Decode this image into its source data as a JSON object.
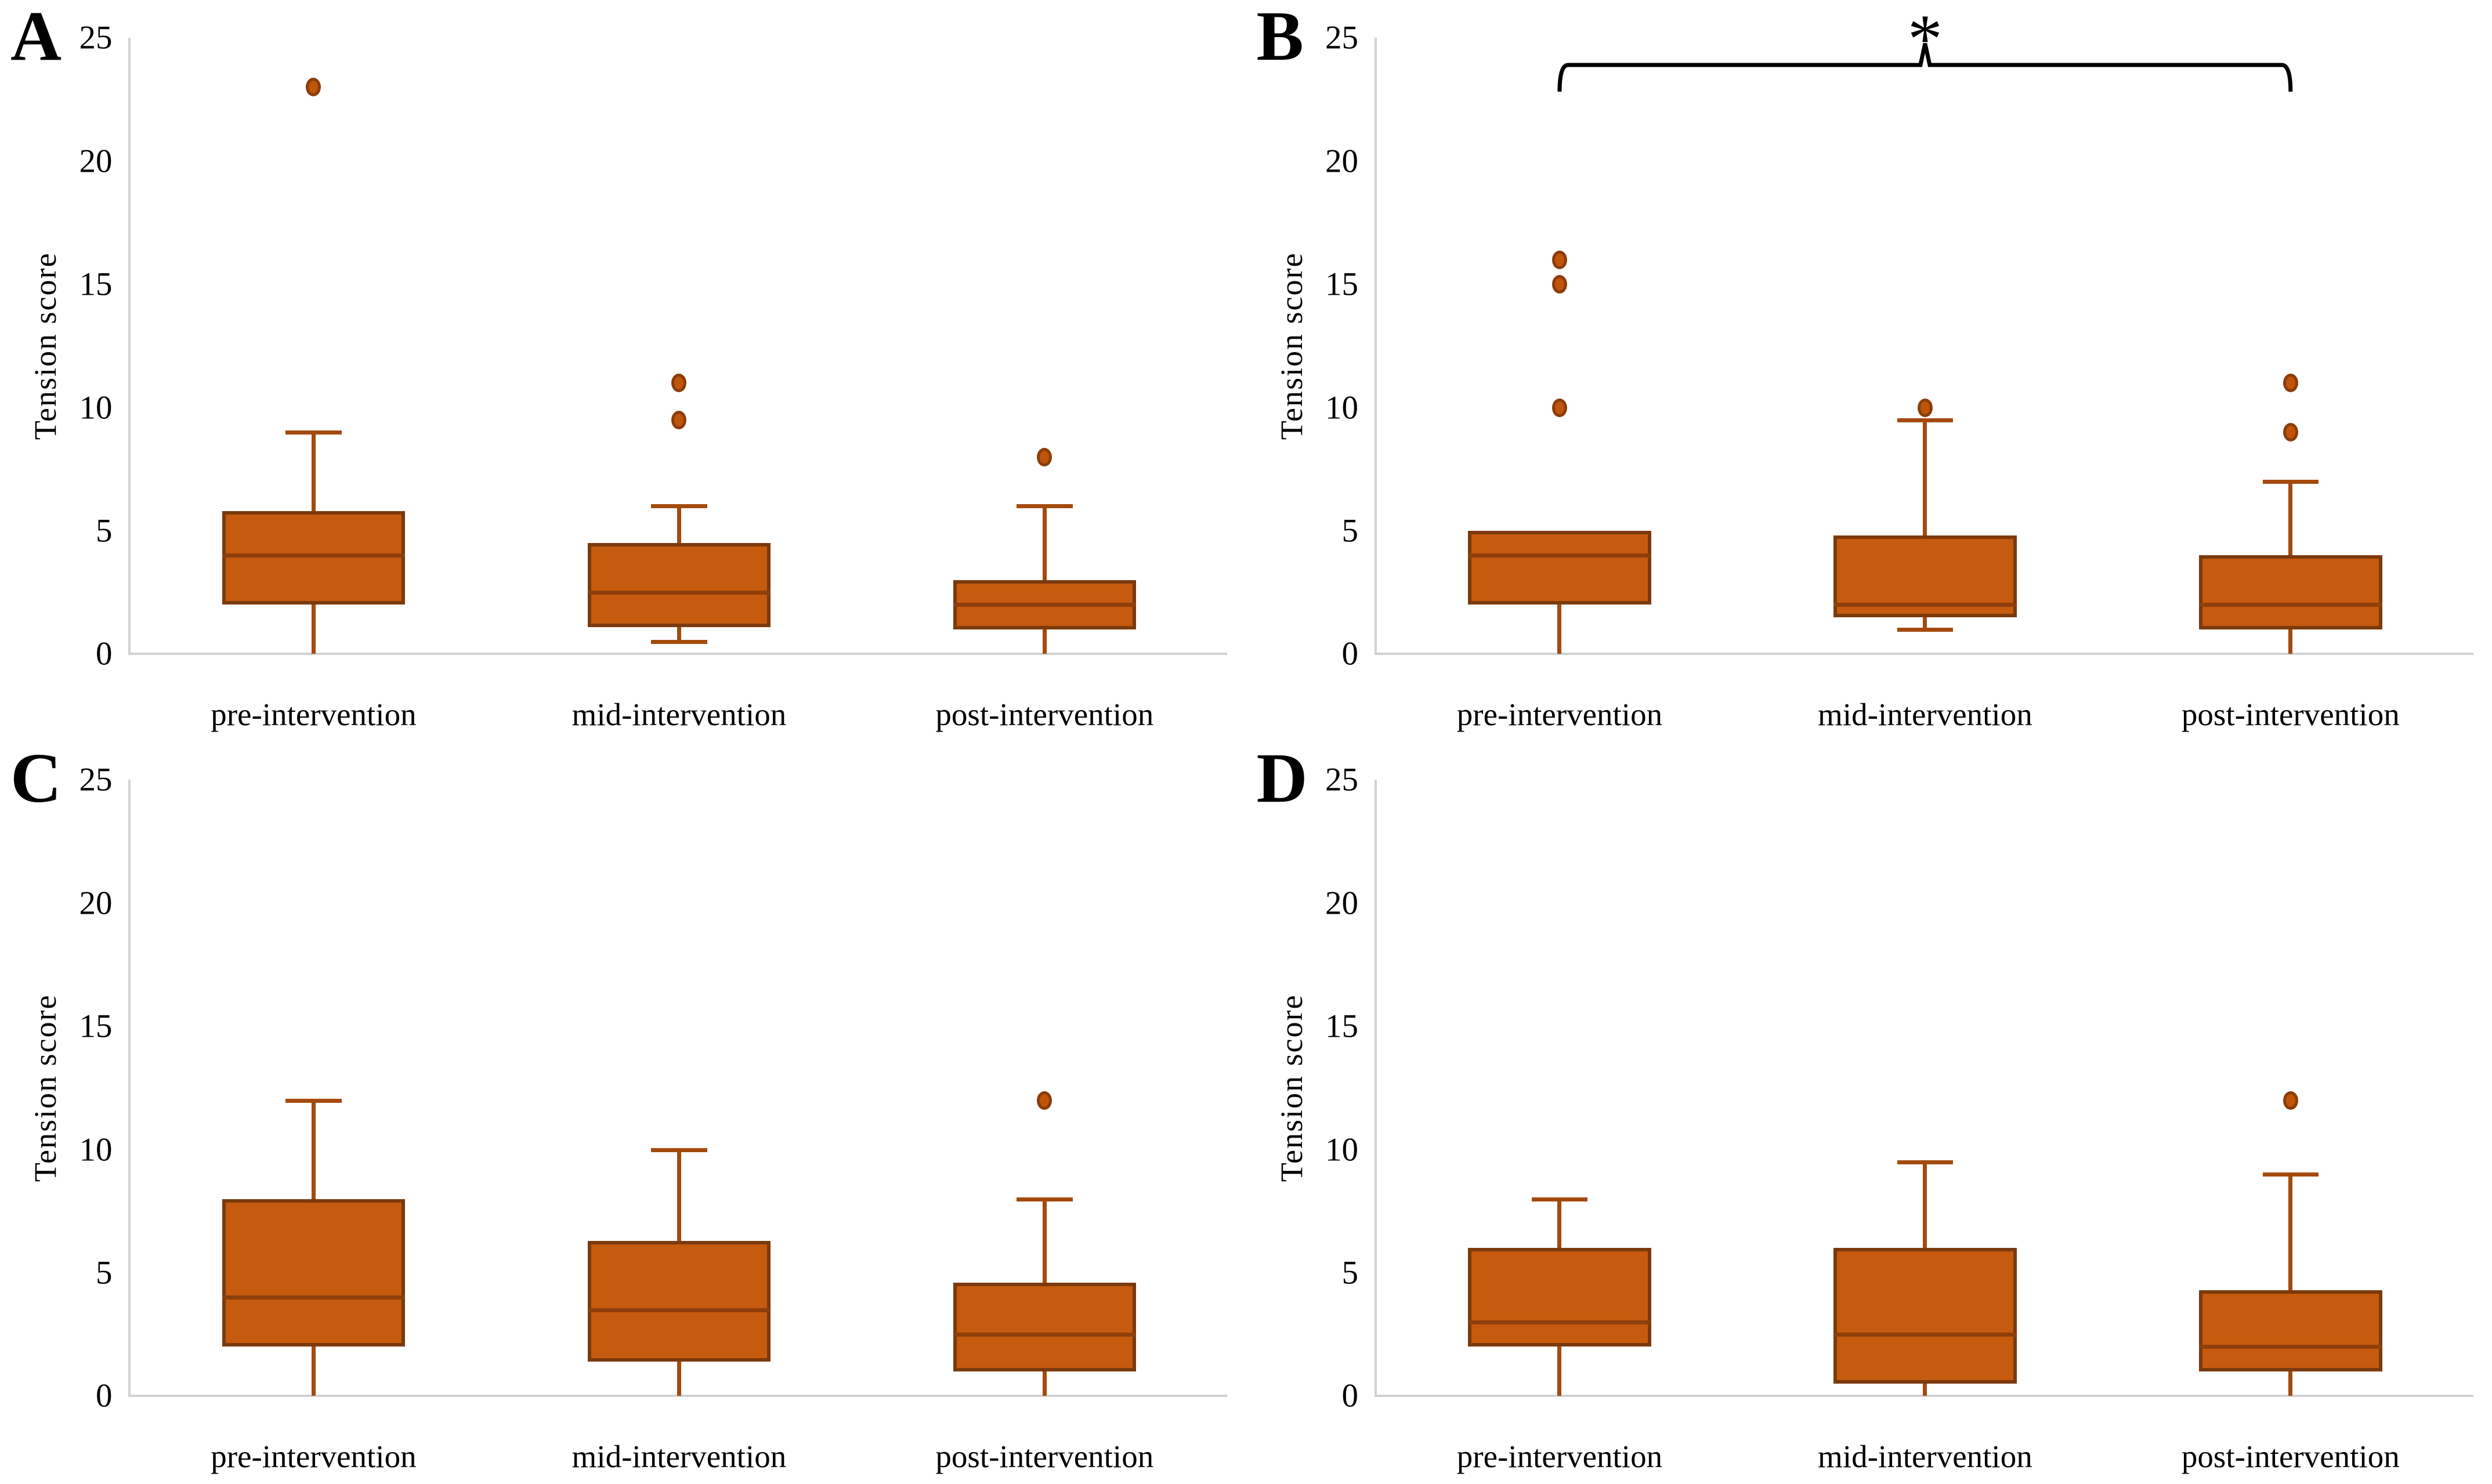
{
  "styles": {
    "box_fill": "#C65A0E",
    "box_border": "#7B3A0D",
    "whisker_color": "#A44A0E",
    "median_color": "#8D3F0C",
    "outlier_fill": "#C05409",
    "outlier_border": "#8A3D0A",
    "axis_color": "#D2D2D2",
    "text_color": "#000000",
    "bracket_color": "#000000"
  },
  "chart_data": [
    {
      "type": "box",
      "panel_label": "A",
      "ylabel": "Tension score",
      "ylim": [
        0,
        25
      ],
      "yticks": [
        0,
        5,
        10,
        15,
        20,
        25
      ],
      "grid": false,
      "legend": false,
      "categories": [
        "pre-intervention",
        "mid-intervention",
        "post-intervention"
      ],
      "boxes": [
        {
          "category": "pre-intervention",
          "min": 0,
          "q1": 2,
          "median": 4,
          "q3": 5.8,
          "max": 9,
          "outliers": [
            23
          ]
        },
        {
          "category": "mid-intervention",
          "min": 0.5,
          "q1": 1.1,
          "median": 2.5,
          "q3": 4.5,
          "max": 6,
          "outliers": [
            9.5,
            11
          ]
        },
        {
          "category": "post-intervention",
          "min": 0,
          "q1": 1,
          "median": 2,
          "q3": 3,
          "max": 6,
          "outliers": [
            8
          ]
        }
      ],
      "significance": null
    },
    {
      "type": "box",
      "panel_label": "B",
      "ylabel": "Tension score",
      "ylim": [
        0,
        25
      ],
      "yticks": [
        0,
        5,
        10,
        15,
        20,
        25
      ],
      "grid": false,
      "legend": false,
      "categories": [
        "pre-intervention",
        "mid-intervention",
        "post-intervention"
      ],
      "boxes": [
        {
          "category": "pre-intervention",
          "min": 0,
          "q1": 2,
          "median": 4,
          "q3": 5,
          "max": 5,
          "outliers": [
            10,
            15,
            16
          ]
        },
        {
          "category": "mid-intervention",
          "min": 1,
          "q1": 1.5,
          "median": 2,
          "q3": 4.8,
          "max": 9.5,
          "outliers": [
            10
          ]
        },
        {
          "category": "post-intervention",
          "min": 0,
          "q1": 1,
          "median": 2,
          "q3": 4,
          "max": 7,
          "outliers": [
            9,
            11
          ]
        }
      ],
      "significance": {
        "from_index": 0,
        "to_index": 2,
        "label": "*"
      }
    },
    {
      "type": "box",
      "panel_label": "C",
      "ylabel": "Tension score",
      "ylim": [
        0,
        25
      ],
      "yticks": [
        0,
        5,
        10,
        15,
        20,
        25
      ],
      "grid": false,
      "legend": false,
      "categories": [
        "pre-intervention",
        "mid-intervention",
        "post-intervention"
      ],
      "boxes": [
        {
          "category": "pre-intervention",
          "min": 0,
          "q1": 2,
          "median": 4,
          "q3": 8,
          "max": 12,
          "outliers": []
        },
        {
          "category": "mid-intervention",
          "min": 0,
          "q1": 1.4,
          "median": 3.5,
          "q3": 6.3,
          "max": 10,
          "outliers": []
        },
        {
          "category": "post-intervention",
          "min": 0,
          "q1": 1,
          "median": 2.5,
          "q3": 4.6,
          "max": 8,
          "outliers": [
            12
          ]
        }
      ],
      "significance": null
    },
    {
      "type": "box",
      "panel_label": "D",
      "ylabel": "Tension score",
      "ylim": [
        0,
        25
      ],
      "yticks": [
        0,
        5,
        10,
        15,
        20,
        25
      ],
      "grid": false,
      "legend": false,
      "categories": [
        "pre-intervention",
        "mid-intervention",
        "post-intervention"
      ],
      "boxes": [
        {
          "category": "pre-intervention",
          "min": 0,
          "q1": 2,
          "median": 3,
          "q3": 6,
          "max": 8,
          "outliers": []
        },
        {
          "category": "mid-intervention",
          "min": 0,
          "q1": 0.5,
          "median": 2.5,
          "q3": 6,
          "max": 9.5,
          "outliers": []
        },
        {
          "category": "post-intervention",
          "min": 0,
          "q1": 1,
          "median": 2,
          "q3": 4.3,
          "max": 9,
          "outliers": [
            12
          ]
        }
      ],
      "significance": null
    }
  ]
}
